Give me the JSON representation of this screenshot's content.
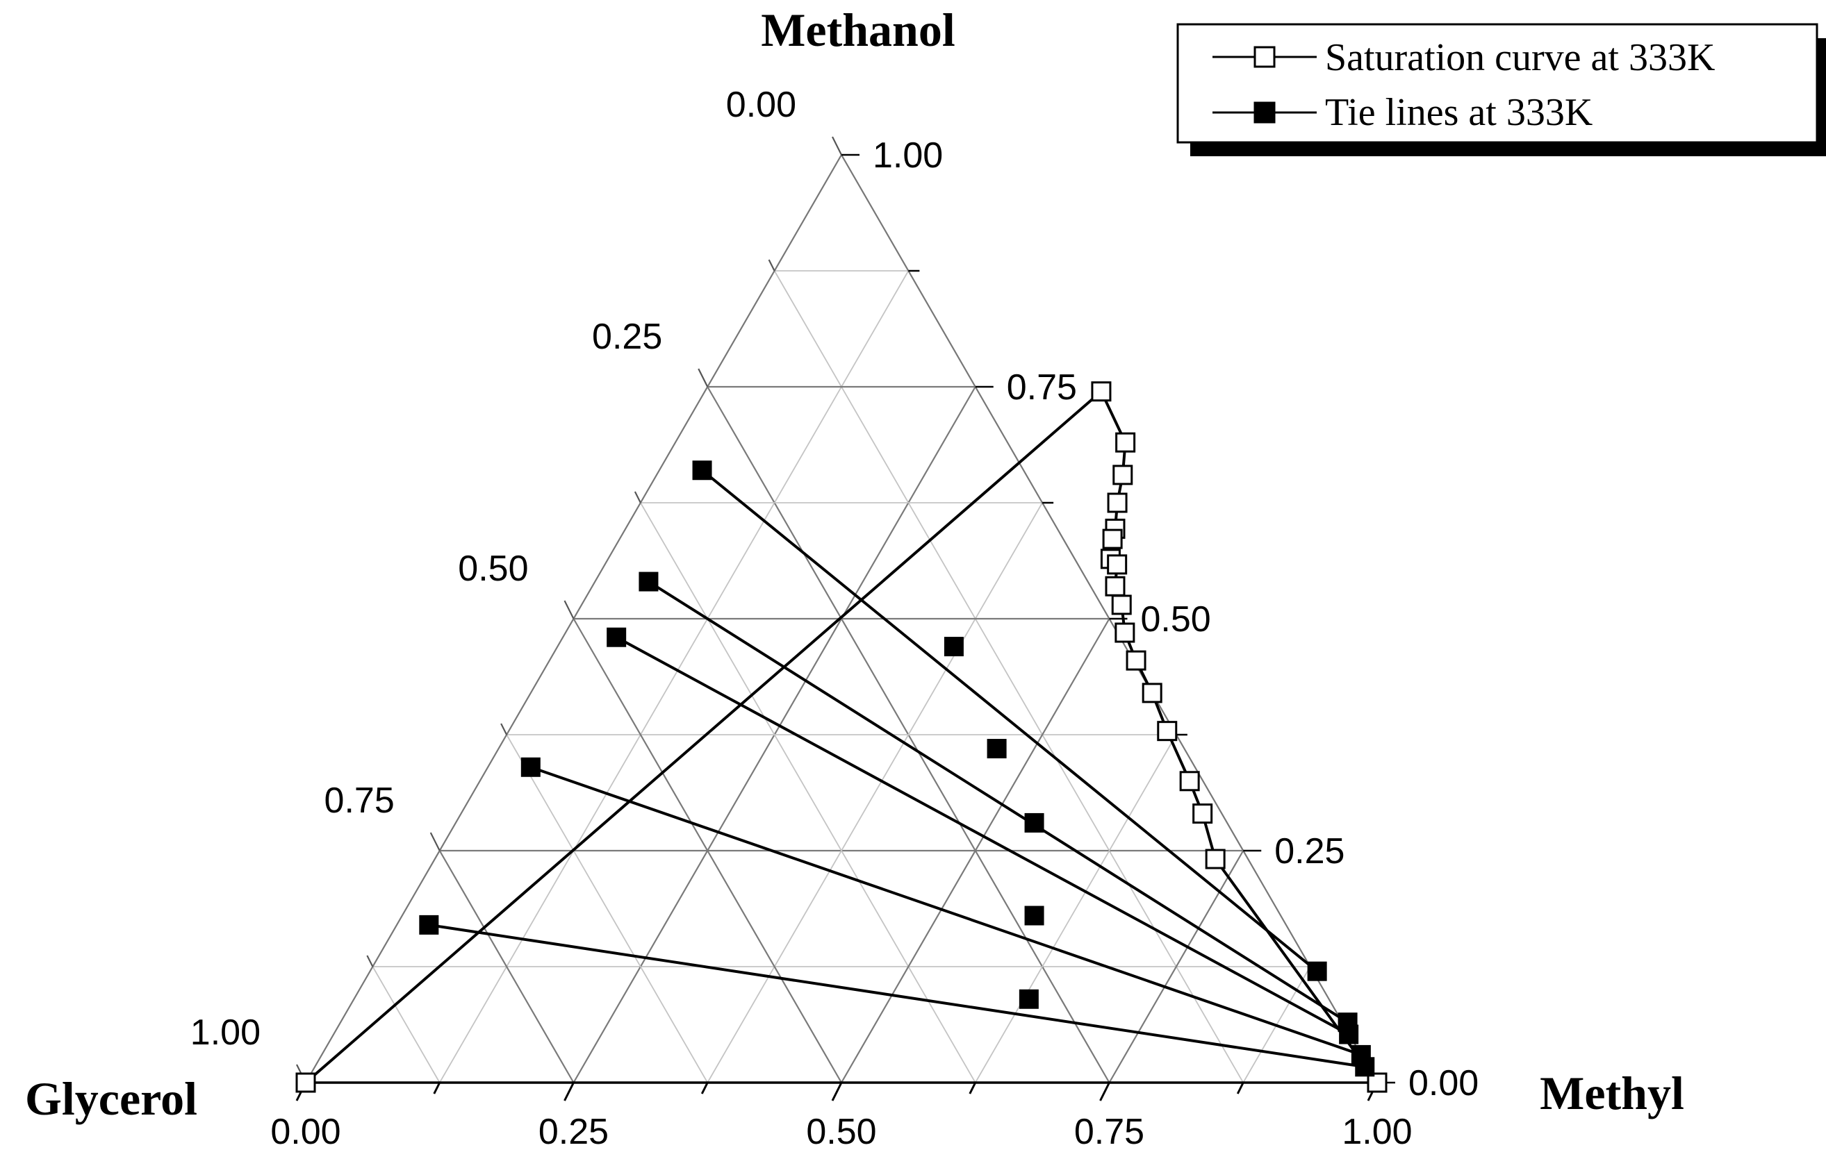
{
  "chart_data": {
    "type": "ternary",
    "vertices": {
      "top": "Methanol",
      "left": "Glycerol",
      "right": "Methyl"
    },
    "axis_ticks": {
      "methanol": [
        "0.00",
        "0.25",
        "0.50",
        "0.75",
        "1.00"
      ],
      "methanol_side_labels": [
        "1.00",
        "0.75",
        "0.50",
        "0.25",
        "0.00"
      ],
      "methyl_bottom_labels": [
        "0.00",
        "0.25",
        "0.50",
        "0.75",
        "1.00"
      ],
      "glycerol_side_labels": [
        "0.00",
        "0.25",
        "0.50",
        "0.75",
        "1.00"
      ]
    },
    "grid_step": 0.125,
    "legend": {
      "position": "top-right",
      "items": [
        {
          "name": "Saturation curve at 333K",
          "marker": "open-square"
        },
        {
          "name": "Tie lines at 333K",
          "marker": "filled-square"
        }
      ]
    },
    "series": [
      {
        "name": "Saturation curve at 333K",
        "marker": "open-square",
        "points": [
          {
            "methanol": 0.0,
            "methyl": 0.0
          },
          {
            "methanol": 0.745,
            "methyl": 0.37
          },
          {
            "methanol": 0.69,
            "methyl": 0.42
          },
          {
            "methanol": 0.655,
            "methyl": 0.435
          },
          {
            "methanol": 0.625,
            "methyl": 0.445
          },
          {
            "methanol": 0.597,
            "methyl": 0.457
          },
          {
            "methanol": 0.586,
            "methyl": 0.46
          },
          {
            "methanol": 0.5645,
            "methyl": 0.469
          },
          {
            "methanol": 0.5585,
            "methyl": 0.478
          },
          {
            "methanol": 0.535,
            "methyl": 0.488
          },
          {
            "methanol": 0.515,
            "methyl": 0.504
          },
          {
            "methanol": 0.485,
            "methyl": 0.522
          },
          {
            "methanol": 0.455,
            "methyl": 0.5475
          },
          {
            "methanol": 0.42,
            "methyl": 0.58
          },
          {
            "methanol": 0.379,
            "methyl": 0.6145
          },
          {
            "methanol": 0.325,
            "methyl": 0.6625
          },
          {
            "methanol": 0.29,
            "methyl": 0.692
          },
          {
            "methanol": 0.241,
            "methyl": 0.7285
          },
          {
            "methanol": 0.0,
            "methyl": 1.0
          }
        ]
      },
      {
        "name": "Tie lines at 333K",
        "marker": "filled-square",
        "tie_lines": [
          {
            "left": {
              "methanol": 0.17,
              "methyl": 0.03
            },
            "mid": {
              "methanol": 0.09,
              "methyl": 0.63
            },
            "right": {
              "methanol": 0.017,
              "methyl": 0.98
            }
          },
          {
            "left": {
              "methanol": 0.34,
              "methyl": 0.04
            },
            "mid": {
              "methanol": 0.18,
              "methyl": 0.59
            },
            "right": {
              "methanol": 0.03,
              "methyl": 0.97
            }
          },
          {
            "left": {
              "methanol": 0.48,
              "methyl": 0.05
            },
            "mid": {
              "methanol": 0.28,
              "methyl": 0.54
            },
            "right": {
              "methanol": 0.052,
              "methyl": 0.9475
            }
          },
          {
            "left": {
              "methanol": 0.54,
              "methyl": 0.05
            },
            "mid": {
              "methanol": 0.36,
              "methyl": 0.465
            },
            "right": {
              "methanol": 0.065,
              "methyl": 0.94
            }
          },
          {
            "left": {
              "methanol": 0.66,
              "methyl": 0.04
            },
            "mid": {
              "methanol": 0.47,
              "methyl": 0.37
            },
            "right": {
              "methanol": 0.12,
              "methyl": 0.884
            }
          }
        ]
      }
    ]
  }
}
